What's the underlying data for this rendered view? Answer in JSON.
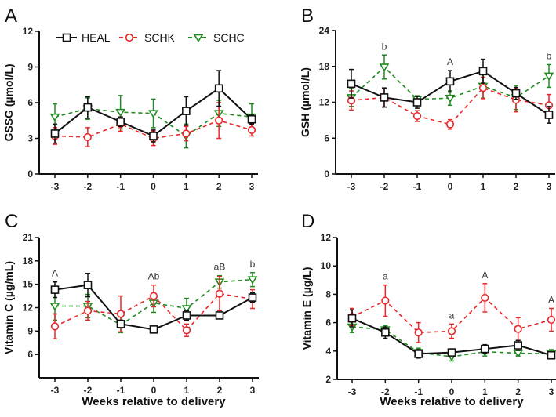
{
  "legend": [
    {
      "name": "HEAL",
      "color": "#111111",
      "marker": "square",
      "dash": false
    },
    {
      "name": "SCHK",
      "color": "#e8262a",
      "marker": "circle",
      "dash": true
    },
    {
      "name": "SCHC",
      "color": "#1f8a1f",
      "marker": "triangle-down",
      "dash": true
    }
  ],
  "chart_data": [
    {
      "panel": "A",
      "type": "line",
      "ylabel": "GSSG (µmol/L)",
      "xlabel": "",
      "x": [
        -3,
        -2,
        -1,
        0,
        1,
        2,
        3
      ],
      "ylim": [
        0,
        12
      ],
      "yticks": [
        0,
        3,
        6,
        9,
        12
      ],
      "series": [
        {
          "name": "HEAL",
          "values": [
            3.4,
            5.6,
            4.4,
            3.2,
            5.3,
            7.2,
            4.6
          ],
          "errors": [
            0.8,
            0.9,
            0.4,
            0.5,
            1.2,
            1.5,
            0.4
          ]
        },
        {
          "name": "SCHK",
          "values": [
            3.2,
            3.1,
            4.2,
            3.0,
            3.4,
            4.5,
            3.7
          ],
          "errors": [
            0.7,
            0.8,
            0.6,
            0.6,
            0.6,
            1.5,
            0.5
          ]
        },
        {
          "name": "SCHC",
          "values": [
            4.8,
            5.5,
            5.2,
            5.1,
            3.2,
            5.1,
            4.8
          ],
          "errors": [
            1.1,
            0.9,
            1.4,
            1.2,
            1.0,
            1.1,
            1.1
          ]
        }
      ],
      "annotations": [],
      "legend_position": "top"
    },
    {
      "panel": "B",
      "type": "line",
      "ylabel": "GSH (µmol/L)",
      "xlabel": "",
      "x": [
        -3,
        -2,
        -1,
        0,
        1,
        2,
        3
      ],
      "ylim": [
        0,
        24
      ],
      "yticks": [
        0,
        6,
        12,
        18,
        24
      ],
      "series": [
        {
          "name": "HEAL",
          "values": [
            15.1,
            12.8,
            12.0,
            15.5,
            17.2,
            13.5,
            9.9
          ],
          "errors": [
            2.4,
            1.6,
            1.0,
            1.8,
            2.0,
            1.0,
            1.4
          ]
        },
        {
          "name": "SCHK",
          "values": [
            12.3,
            12.8,
            9.7,
            8.3,
            14.4,
            12.4,
            11.5
          ],
          "errors": [
            1.6,
            1.6,
            0.9,
            0.8,
            1.8,
            2.0,
            1.8
          ]
        },
        {
          "name": "SCHC",
          "values": [
            12.8,
            17.9,
            12.5,
            12.7,
            14.7,
            12.8,
            16.4
          ],
          "errors": [
            1.5,
            2.0,
            0.6,
            1.2,
            2.0,
            2.0,
            1.9
          ]
        }
      ],
      "annotations": [
        {
          "x": -2,
          "text": "b"
        },
        {
          "x": 0,
          "text": "A"
        },
        {
          "x": 3,
          "text": "b"
        }
      ]
    },
    {
      "panel": "C",
      "type": "line",
      "ylabel": "Vitamin C (µg/mL)",
      "xlabel": "Weeks relative to delivery",
      "x": [
        -3,
        -2,
        -1,
        0,
        1,
        2,
        3
      ],
      "ylim": [
        3,
        21
      ],
      "yticks": [
        6,
        9,
        12,
        15,
        18,
        21
      ],
      "series": [
        {
          "name": "HEAL",
          "values": [
            14.3,
            14.9,
            9.9,
            9.2,
            11.0,
            11.0,
            13.3
          ],
          "errors": [
            1.0,
            1.5,
            0.5,
            0.2,
            0.6,
            0.4,
            0.6
          ]
        },
        {
          "name": "SCHK",
          "values": [
            9.6,
            11.6,
            11.2,
            13.5,
            9.1,
            13.8,
            13.1
          ],
          "errors": [
            1.6,
            1.2,
            2.3,
            1.4,
            0.8,
            2.2,
            1.2
          ]
        },
        {
          "name": "SCHC",
          "values": [
            12.2,
            12.2,
            9.8,
            12.6,
            11.9,
            15.3,
            15.6
          ],
          "errors": [
            1.8,
            1.5,
            1.0,
            1.2,
            1.3,
            0.8,
            0.9
          ]
        }
      ],
      "annotations": [
        {
          "x": -3,
          "text": "A"
        },
        {
          "x": 0,
          "text": "Ab"
        },
        {
          "x": 2,
          "text": "aB"
        },
        {
          "x": 3,
          "text": "b"
        }
      ]
    },
    {
      "panel": "D",
      "type": "line",
      "ylabel": "Vitamin E (µg/L)",
      "xlabel": "Weeks relative to delivery",
      "x": [
        -3,
        -2,
        -1,
        0,
        1,
        2,
        3
      ],
      "ylim": [
        2,
        12
      ],
      "yticks": [
        2,
        4,
        6,
        8,
        10,
        12
      ],
      "series": [
        {
          "name": "HEAL",
          "values": [
            6.3,
            5.3,
            3.8,
            3.9,
            4.15,
            4.4,
            3.7
          ],
          "errors": [
            0.6,
            0.4,
            0.3,
            0.2,
            0.3,
            0.35,
            0.2
          ]
        },
        {
          "name": "SCHK",
          "values": [
            6.4,
            7.55,
            5.3,
            5.4,
            7.75,
            5.55,
            6.2
          ],
          "errors": [
            0.6,
            1.1,
            0.7,
            0.5,
            1.0,
            0.8,
            0.8
          ]
        },
        {
          "name": "SCHC",
          "values": [
            5.7,
            5.5,
            3.9,
            3.6,
            3.95,
            3.85,
            3.8
          ],
          "errors": [
            0.4,
            0.3,
            0.3,
            0.3,
            0.3,
            0.2,
            0.3
          ]
        }
      ],
      "annotations": [
        {
          "x": -2,
          "text": "a"
        },
        {
          "x": 0,
          "text": "a"
        },
        {
          "x": 1,
          "text": "A"
        },
        {
          "x": 3,
          "text": "A"
        }
      ]
    }
  ]
}
